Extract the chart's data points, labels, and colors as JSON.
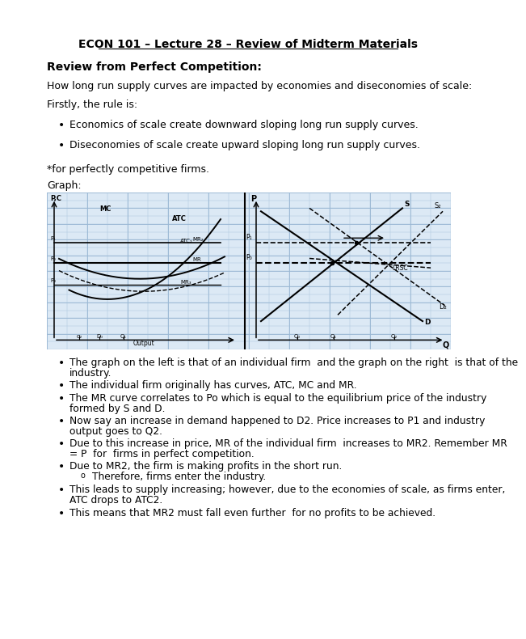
{
  "title": "ECON 101 – Lecture 28 – Review of Midterm Materials",
  "section_heading": "Review from Perfect Competition:",
  "intro_text": "How long run supply curves are impacted by economies and diseconomies of scale:",
  "firstly_text": "Firstly, the rule is:",
  "bullets_top": [
    "Economics of scale create downward sloping long run supply curves.",
    "Diseconomies of scale create upward sloping long run supply curves."
  ],
  "star_note": "*for perfectly competitive firms.",
  "graph_label": "Graph:",
  "sub_bullet": "Therefore, firms enter the industry.",
  "bullets_bottom": [
    "The graph on the left is that of an individual firm  and the graph on the right  is that of the\nindustry.",
    "The individual firm originally has curves, ATC, MC and MR.",
    "The MR curve correlates to Po which is equal to the equilibrium price of the industry\nformed by S and D.",
    "Now say an increase in demand happened to D2. Price increases to P1 and industry\noutput goes to Q2.",
    "Due to this increase in price, MR of the individual firm  increases to MR2. Remember MR\n= P  for  firms in perfect competition.",
    "Due to MR2, the firm is making profits in the short run.",
    "This leads to supply increasing; however, due to the economies of scale, as firms enter,\nATC drops to ATC2.",
    "This means that MR2 must fall even further  for no profits to be achieved."
  ],
  "bg_color": "#ffffff",
  "text_color": "#000000",
  "title_color": "#000000",
  "grid_color_light": "#adc8e0",
  "grid_color_dark": "#9ab8d4",
  "graph_bg": "#dce9f5"
}
